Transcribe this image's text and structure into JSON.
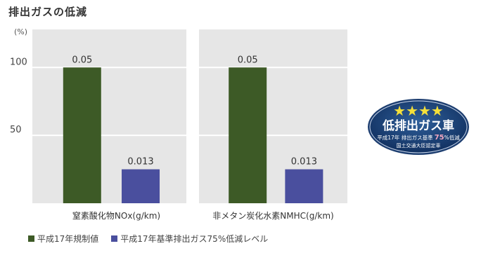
{
  "title": "排出ガスの低減",
  "chart_data": {
    "type": "bar",
    "unit_label": "(%)",
    "yticks": [
      100,
      50
    ],
    "ylim": [
      0,
      128
    ],
    "categories": [
      "窒素酸化物NOx(g/km)",
      "非メタン炭化水素NMHC(g/km)"
    ],
    "series": [
      {
        "name": "平成17年規制値",
        "values": [
          100,
          100
        ],
        "labels": [
          "0.05",
          "0.05"
        ],
        "color": "#3d5a26"
      },
      {
        "name": "平成17年基準排出ガス75%低減レベル",
        "values": [
          25,
          25
        ],
        "labels": [
          "0.013",
          "0.013"
        ],
        "color": "#4a4f9e"
      }
    ]
  },
  "badge": {
    "stars": "★★★★",
    "main": "低排出ガス車",
    "line1_a": "平成17年 排出ガス基準",
    "line1_num": "75",
    "line1_b": "%低減",
    "line2": "国土交通大臣認定車"
  }
}
